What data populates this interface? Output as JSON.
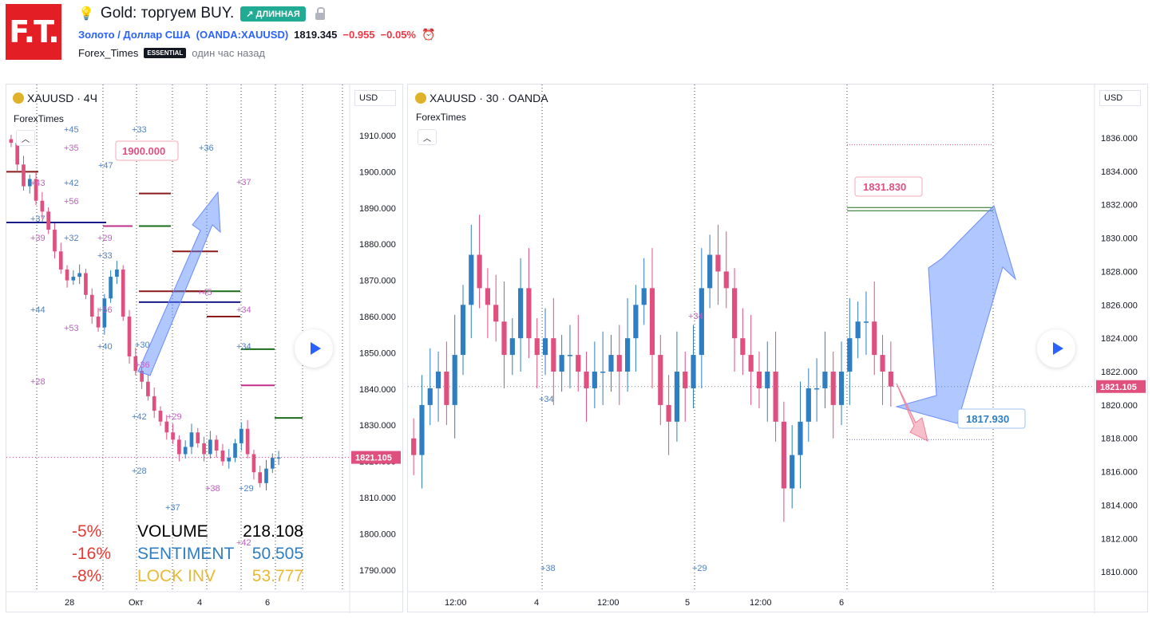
{
  "header": {
    "logo_text": "F.T.",
    "title": "Gold: торгуем BUY.",
    "badge": "↗ ДЛИННАЯ",
    "symbol_name": "Золото / Доллар США",
    "symbol_ticker": "(OANDA:XAUUSD)",
    "price": "1819.345",
    "change": "−0.955",
    "change_pct": "−0.05%",
    "author": "Forex_Times",
    "author_badge": "ESSENTIAL",
    "published": "один час назад"
  },
  "left_chart": {
    "title": "XAUUSD · 4Ч",
    "indicator": "ForexTimes",
    "currency": "USD",
    "price_ticks": [
      "1910.000",
      "1900.000",
      "1890.000",
      "1880.000",
      "1870.000",
      "1860.000",
      "1850.000",
      "1840.000",
      "1830.000",
      "1820.000",
      "1810.000",
      "1800.000",
      "1790.000"
    ],
    "last_price": "1821.105",
    "time_ticks": [
      "28",
      "Окт",
      "4",
      "6"
    ],
    "target_label": "1900.000",
    "stats": [
      {
        "pct": "-5%",
        "name": "VOLUME",
        "value": "218.108",
        "color": "#000000"
      },
      {
        "pct": "-16%",
        "name": "SENTIMENT",
        "value": "50.505",
        "color": "#2f7ec1"
      },
      {
        "pct": "-8%",
        "name": "LOCK INV",
        "value": "53.777",
        "color": "#e8b935"
      }
    ],
    "level_labels": [
      "+45",
      "+35",
      "+47",
      "+43",
      "+42",
      "+56",
      "+37",
      "+39",
      "+32",
      "+29",
      "+33",
      "+56",
      "+44",
      "+53",
      "+40",
      "+28",
      "+30",
      "+36",
      "+42",
      "+29",
      "+37",
      "+38",
      "+29",
      "+34",
      "+36",
      "+37",
      "+33",
      "+45",
      "+34",
      "+42",
      "+28"
    ]
  },
  "right_chart": {
    "title": "XAUUSD · 30 · OANDA",
    "indicator": "ForexTimes",
    "currency": "USD",
    "price_ticks": [
      "1836.000",
      "1834.000",
      "1832.000",
      "1830.000",
      "1828.000",
      "1826.000",
      "1824.000",
      "1822.000",
      "1820.000",
      "1818.000",
      "1816.000",
      "1814.000",
      "1812.000",
      "1810.000"
    ],
    "last_price": "1821.105",
    "time_ticks": [
      "12:00",
      "4",
      "12:00",
      "5",
      "12:00",
      "6"
    ],
    "target_label": "1831.830",
    "stop_label": "1817.930",
    "level_labels": [
      "+34",
      "+34",
      "+38",
      "+29"
    ]
  },
  "chart_data": [
    {
      "type": "candlestick",
      "title": "XAUUSD · 4Ч",
      "ylim": [
        1785,
        1920
      ],
      "price_ticks": [
        1910,
        1900,
        1890,
        1880,
        1870,
        1860,
        1850,
        1840,
        1830,
        1820,
        1810,
        1800,
        1790
      ],
      "last_price": 1821.105,
      "closes": [
        1908,
        1902,
        1896,
        1898,
        1892,
        1889,
        1884,
        1878,
        1873,
        1870,
        1871,
        1872,
        1866,
        1860,
        1857,
        1865,
        1871,
        1873,
        1860,
        1849,
        1845,
        1842,
        1838,
        1834,
        1831,
        1828,
        1826,
        1822,
        1824,
        1828,
        1825,
        1822,
        1826,
        1823,
        1820,
        1821,
        1825,
        1829,
        1822,
        1817,
        1814,
        1818,
        1821,
        1821.105
      ],
      "long_target": 1900.0
    },
    {
      "type": "candlestick",
      "title": "XAUUSD · 30 · OANDA",
      "ylim": [
        1809,
        1837
      ],
      "price_ticks": [
        1836,
        1834,
        1832,
        1830,
        1828,
        1826,
        1824,
        1822,
        1820,
        1818,
        1816,
        1814,
        1812,
        1810
      ],
      "last_price": 1821.105,
      "closes": [
        1817,
        1820,
        1821,
        1822,
        1820,
        1823,
        1826,
        1829,
        1827,
        1826,
        1825,
        1823,
        1824,
        1827,
        1824,
        1823,
        1824,
        1822,
        1823,
        1823,
        1822,
        1821,
        1822,
        1822,
        1823,
        1822,
        1824,
        1826,
        1827,
        1823,
        1820,
        1819,
        1822,
        1821,
        1823,
        1827,
        1829,
        1828,
        1827,
        1824,
        1823,
        1822,
        1821,
        1822,
        1819,
        1815,
        1817,
        1819,
        1821,
        1821,
        1822,
        1820,
        1822,
        1824,
        1825,
        1825,
        1823,
        1822,
        1821.105
      ],
      "target": 1831.83,
      "stop": 1817.93
    }
  ]
}
